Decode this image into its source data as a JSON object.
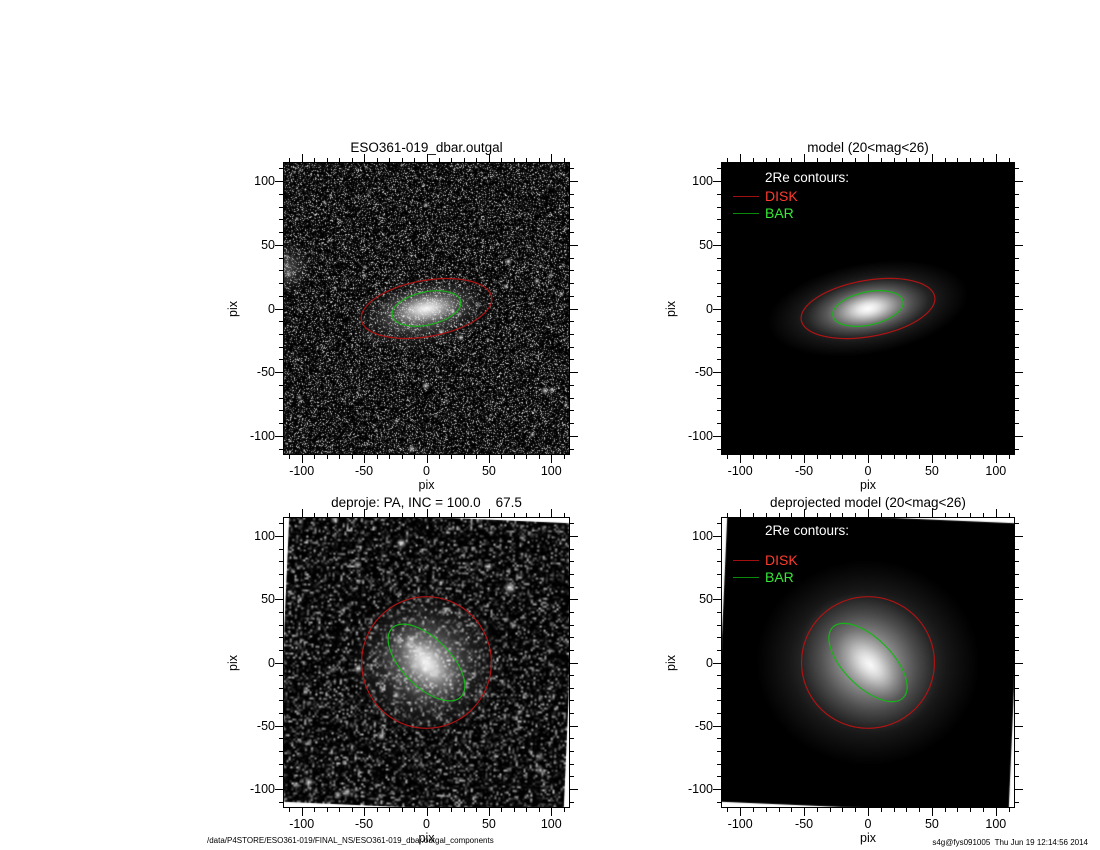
{
  "footer": {
    "left": "/data/P4STORE/ESO361-019/FINAL_NS/ESO361-019_dbar.outgal_components",
    "right": "s4g@fys091005  Thu Jun 19 12:14:56 2014"
  },
  "colors": {
    "background": "#ffffff",
    "panel_background": "#000000",
    "axis": "#000000",
    "disk_contour": "#ad1414",
    "bar_contour": "#17b517",
    "disk_label": "#ff3b2e",
    "bar_label": "#37e837",
    "legend_text": "#ffffff"
  },
  "chart_data": {
    "type": "heatmap",
    "description": "Four-panel galaxy decomposition figure for ESO361-019: observed image, disk+bar model, deprojected image, deprojected model. Red/green ellipses mark 2Re contours of DISK and BAR components.",
    "axes": {
      "xlabel": "pix",
      "ylabel": "pix",
      "xlim": [
        -115,
        115
      ],
      "ylim": [
        -115,
        115
      ],
      "major_ticks": [
        -100,
        -50,
        0,
        50,
        100
      ],
      "tick_labels": [
        "-100",
        "-50",
        "0",
        "50",
        "100"
      ],
      "minor_tick_step": 10,
      "ticks_outward": true
    },
    "legend": {
      "title": "2Re contours:",
      "entries": [
        {
          "label": "DISK",
          "text_color": "#ff3b2e",
          "line_color": "#a01010"
        },
        {
          "label": "BAR",
          "text_color": "#37e837",
          "line_color": "#0a8a0a"
        }
      ]
    },
    "panels": [
      {
        "title": "ESO361-019_dbar.outgal",
        "rect": [
          283,
          162,
          287,
          293
        ],
        "style": "noisy",
        "frame_rotation": 0,
        "show_legend": false,
        "noise": {
          "seed": 11,
          "exp": 6,
          "gain": 235,
          "stars": 64,
          "bright_stars": 7,
          "soft": false,
          "knots": true
        },
        "glows": [
          {
            "x": -4,
            "y": -4,
            "R": 62,
            "ratio": 0.5,
            "angle": -10,
            "alpha": 0.32
          },
          {
            "x": 0,
            "y": 0,
            "R": 44,
            "ratio": 0.45,
            "angle": -10,
            "alpha": 0.55
          },
          {
            "x": 0,
            "y": 0,
            "R": 26,
            "ratio": 0.42,
            "angle": -8,
            "alpha": 0.9
          },
          {
            "x": -113,
            "y": 32,
            "R": 22,
            "ratio": 1.0,
            "angle": 0,
            "alpha": 0.3
          }
        ],
        "contours": [
          {
            "name": "DISK",
            "cx": 0,
            "cy": 0,
            "a": 53,
            "b": 22,
            "angle": -10,
            "color": "#ad1414"
          },
          {
            "name": "BAR",
            "cx": 0,
            "cy": 0,
            "a": 28,
            "b": 13,
            "angle": -12,
            "color": "#17b517"
          }
        ]
      },
      {
        "title": "model (20<mag<26)",
        "rect": [
          721,
          162,
          294,
          293
        ],
        "style": "smooth",
        "frame_rotation": 0,
        "show_legend": true,
        "legend_layout": {
          "title_top": 8,
          "rows_top": [
            26,
            43
          ]
        },
        "glows": [
          {
            "x": 0,
            "y": 0,
            "R": 80,
            "ratio": 0.45,
            "angle": -10,
            "alpha": 0.5
          },
          {
            "x": 0,
            "y": 0,
            "R": 48,
            "ratio": 0.45,
            "angle": -10,
            "alpha": 0.75
          },
          {
            "x": 0,
            "y": 0,
            "R": 24,
            "ratio": 0.5,
            "angle": -10,
            "alpha": 0.95
          }
        ],
        "contours": [
          {
            "name": "DISK",
            "cx": 0,
            "cy": 0,
            "a": 53,
            "b": 22,
            "angle": -10,
            "color": "#ad1414"
          },
          {
            "name": "BAR",
            "cx": 0,
            "cy": 0,
            "a": 28,
            "b": 13,
            "angle": -12,
            "color": "#17b517"
          }
        ]
      },
      {
        "title": "deproje: PA, INC = 100.0    67.5",
        "rect": [
          283,
          517,
          287,
          291
        ],
        "style": "noisy",
        "frame_rotation": 2.5,
        "show_legend": false,
        "noise": {
          "seed": 23,
          "exp": 6,
          "gain": 200,
          "stars": 30,
          "bright_stars": 5,
          "soft": true,
          "knots": true
        },
        "glows": [
          {
            "x": 0,
            "y": 0,
            "R": 62,
            "ratio": 0.95,
            "angle": 0,
            "alpha": 0.45
          },
          {
            "x": 0,
            "y": 0,
            "R": 42,
            "ratio": 0.75,
            "angle": 45,
            "alpha": 0.5
          },
          {
            "x": 0,
            "y": 0,
            "R": 28,
            "ratio": 0.5,
            "angle": 45,
            "alpha": 0.85
          }
        ],
        "contours": [
          {
            "name": "DISK",
            "cx": 0,
            "cy": 0,
            "a": 52,
            "b": 52,
            "angle": 0,
            "color": "#ad1414"
          },
          {
            "name": "BAR",
            "cx": 0,
            "cy": 0,
            "a": 39,
            "b": 19,
            "angle": 45,
            "color": "#17b517"
          }
        ]
      },
      {
        "title": "deprojected model (20<mag<26)",
        "rect": [
          721,
          517,
          294,
          291
        ],
        "style": "smooth",
        "frame_rotation": 2.5,
        "show_legend": true,
        "legend_layout": {
          "title_top": 6,
          "rows_top": [
            35,
            52
          ]
        },
        "glows": [
          {
            "x": 0,
            "y": 0,
            "R": 88,
            "ratio": 0.92,
            "angle": 0,
            "alpha": 0.5
          },
          {
            "x": 0,
            "y": 0,
            "R": 58,
            "ratio": 0.85,
            "angle": 45,
            "alpha": 0.6
          },
          {
            "x": 2,
            "y": -2,
            "R": 33,
            "ratio": 0.55,
            "angle": 45,
            "alpha": 0.9
          }
        ],
        "contours": [
          {
            "name": "DISK",
            "cx": 0,
            "cy": 0,
            "a": 52,
            "b": 52,
            "angle": 0,
            "color": "#ad1414"
          },
          {
            "name": "BAR",
            "cx": 0,
            "cy": 0,
            "a": 39,
            "b": 19,
            "angle": 45,
            "color": "#17b517"
          }
        ]
      }
    ]
  }
}
